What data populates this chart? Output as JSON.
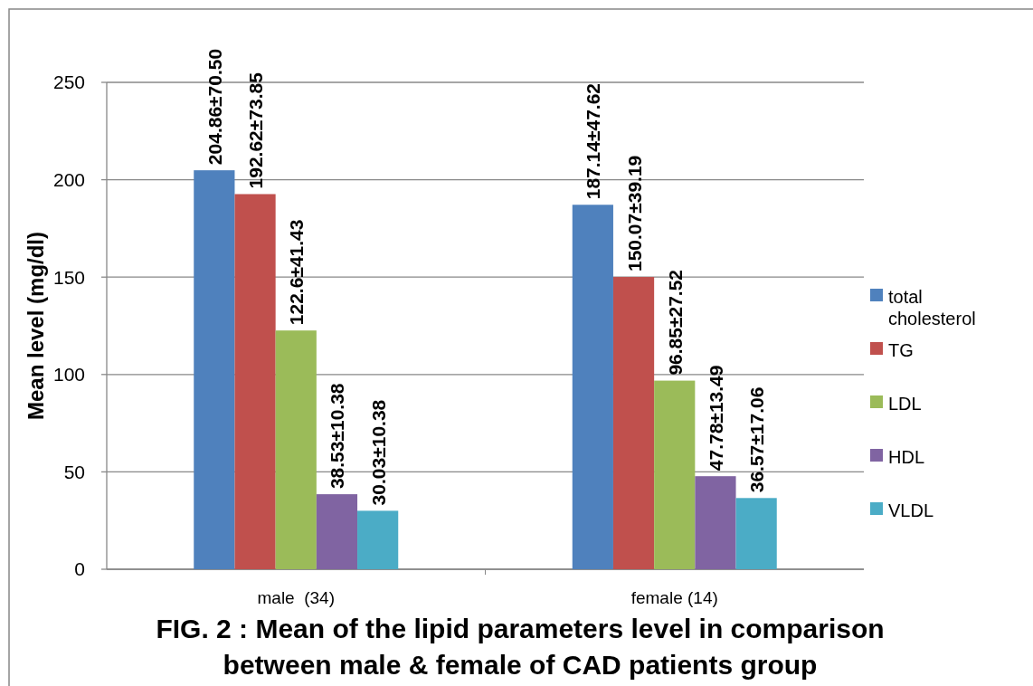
{
  "chart_data": {
    "type": "bar",
    "title": "FIG. 2 : Mean of the lipid parameters level in comparison between male & female of CAD patients group",
    "ylabel": "Mean level (mg/dl)",
    "categories": [
      "male  (34)",
      "female (14)"
    ],
    "series": [
      {
        "name": "total cholesterol",
        "color": "#4f81bd",
        "values": [
          204.86,
          187.14
        ],
        "value_labels": [
          "204.86±70.50",
          "187.14±47.62"
        ]
      },
      {
        "name": "TG",
        "color": "#c0504d",
        "values": [
          192.62,
          150.07
        ],
        "value_labels": [
          "192.62±73.85",
          "150.07±39.19"
        ]
      },
      {
        "name": "LDL",
        "color": "#9bbb59",
        "values": [
          122.6,
          96.85
        ],
        "value_labels": [
          "122.6±41.43",
          "96.85±27.52"
        ]
      },
      {
        "name": "HDL",
        "color": "#8064a2",
        "values": [
          38.53,
          47.78
        ],
        "value_labels": [
          "38.53±10.38",
          "47.78±13.49"
        ]
      },
      {
        "name": "VLDL",
        "color": "#4bacc6",
        "values": [
          30.03,
          36.57
        ],
        "value_labels": [
          "30.03±10.38",
          "36.57±17.06"
        ]
      }
    ],
    "ylim": [
      0,
      250
    ],
    "yticks": [
      0,
      50,
      100,
      150,
      200,
      250
    ],
    "grid": "y",
    "legend": "right"
  }
}
